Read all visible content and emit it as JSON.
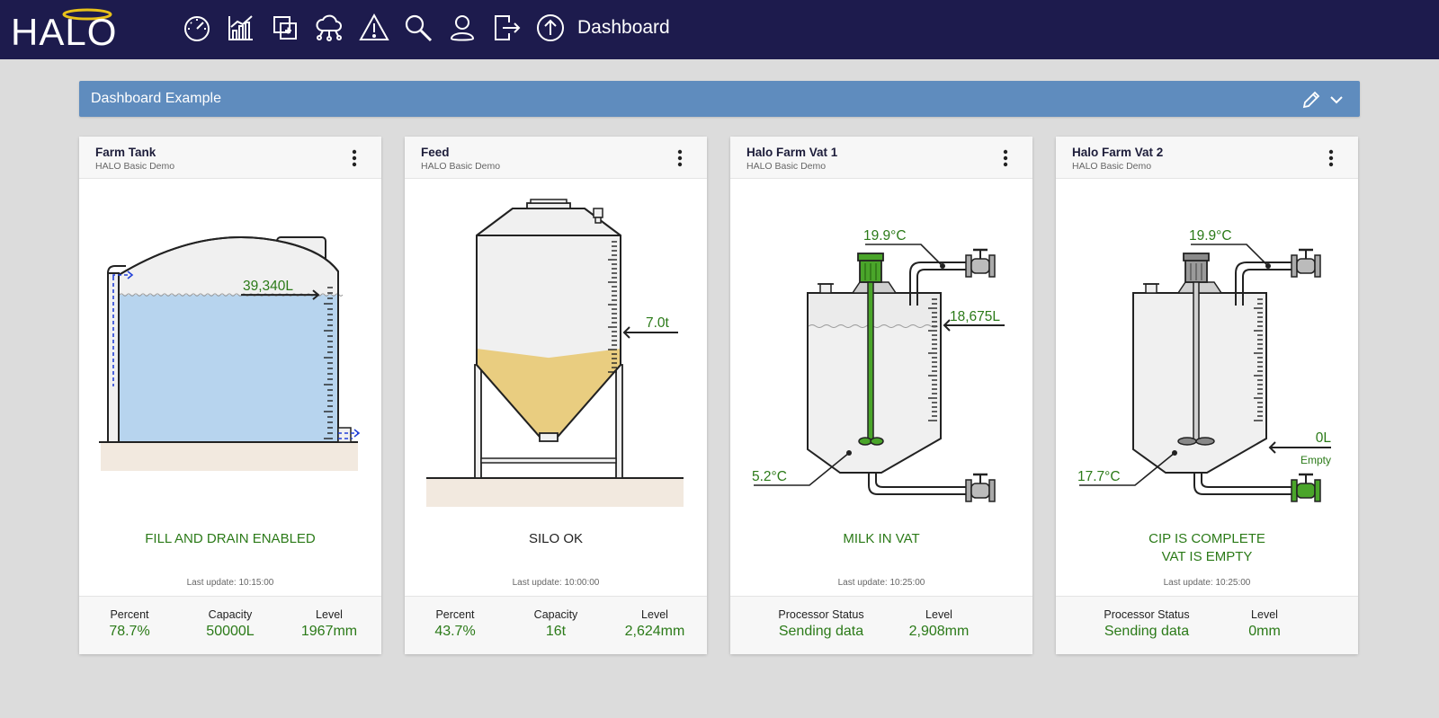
{
  "header": {
    "logo_text": "HALO",
    "page_title": "Dashboard",
    "nav": [
      {
        "icon": "gauge-icon"
      },
      {
        "icon": "chart-icon"
      },
      {
        "icon": "copy-icon"
      },
      {
        "icon": "cloud-network-icon"
      },
      {
        "icon": "warning-icon"
      },
      {
        "icon": "search-icon"
      },
      {
        "icon": "user-icon"
      },
      {
        "icon": "logout-icon"
      },
      {
        "icon": "upload-icon"
      }
    ]
  },
  "banner": {
    "title": "Dashboard Example"
  },
  "colors": {
    "navbar": "#1d1b4d",
    "banner": "#5f8cbe",
    "status_green": "#2b7a18",
    "water": "#b7d4ee",
    "grain": "#e9cd80",
    "agitator_active": "#4aa52a",
    "valve_open": "#4aa52a"
  },
  "cards": [
    {
      "title": "Farm Tank",
      "subtitle": "HALO Basic Demo",
      "gauge_label": "39,340L",
      "fill_level": 0.787,
      "status_lines": [
        "FILL AND DRAIN ENABLED"
      ],
      "last_update": "Last update: 10:15:00",
      "metrics": [
        {
          "label": "Percent",
          "value": "78.7%"
        },
        {
          "label": "Capacity",
          "value": "50000L"
        },
        {
          "label": "Level",
          "value": "1967mm"
        }
      ]
    },
    {
      "title": "Feed",
      "subtitle": "HALO Basic Demo",
      "gauge_label": "7.0t",
      "fill_level": 0.437,
      "status_lines": [
        "SILO OK"
      ],
      "last_update": "Last update: 10:00:00",
      "metrics": [
        {
          "label": "Percent",
          "value": "43.7%"
        },
        {
          "label": "Capacity",
          "value": "16t"
        },
        {
          "label": "Level",
          "value": "2,624mm"
        }
      ]
    },
    {
      "title": "Halo Farm Vat 1",
      "subtitle": "HALO Basic Demo",
      "temp_top": "19.9°C",
      "temp_bottom": "5.2°C",
      "gauge_label": "18,675L",
      "status_lines": [
        "MILK IN VAT"
      ],
      "last_update": "Last update: 10:25:00",
      "metrics": [
        {
          "label": "Processor Status",
          "value": "Sending data"
        },
        {
          "label": "Level",
          "value": "2,908mm"
        }
      ]
    },
    {
      "title": "Halo Farm Vat 2",
      "subtitle": "HALO Basic Demo",
      "temp_top": "19.9°C",
      "temp_bottom": "17.7°C",
      "gauge_label": "0L",
      "gauge_sublabel": "Empty",
      "status_lines": [
        "CIP IS COMPLETE",
        "VAT IS EMPTY"
      ],
      "last_update": "Last update: 10:25:00",
      "metrics": [
        {
          "label": "Processor Status",
          "value": "Sending data"
        },
        {
          "label": "Level",
          "value": "0mm"
        }
      ]
    }
  ]
}
